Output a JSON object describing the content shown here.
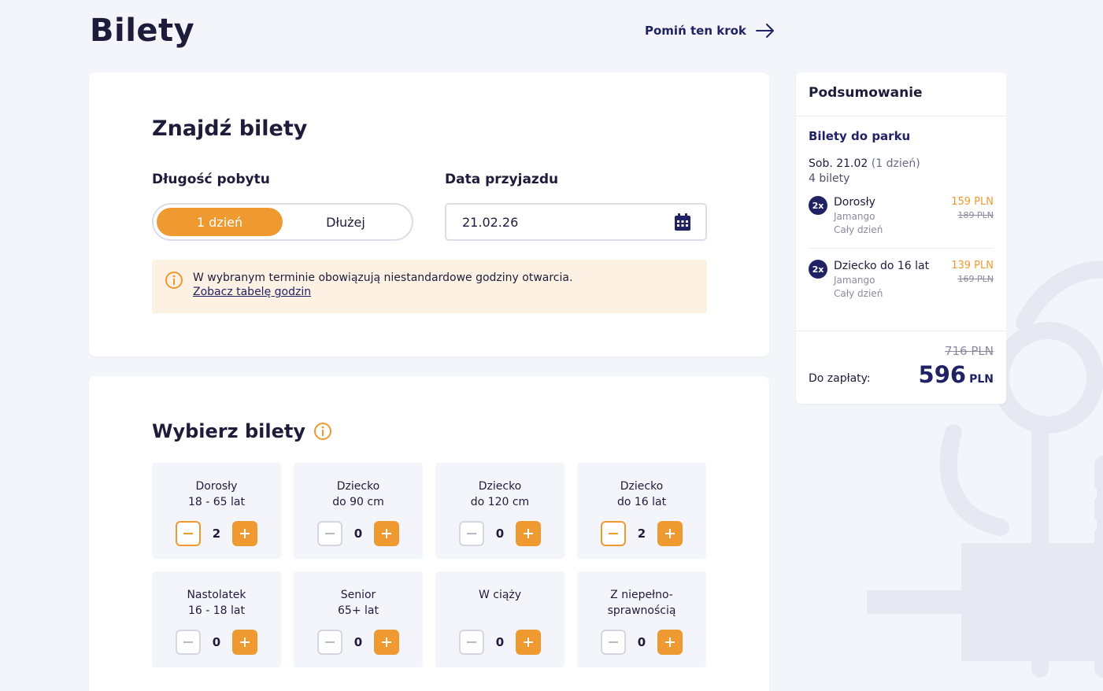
{
  "page": {
    "title": "Bilety",
    "skip_label": "Pomiń ten krok"
  },
  "find": {
    "title": "Znajdź bilety",
    "duration_label": "Długość pobytu",
    "duration_options": [
      "1 dzień",
      "Dłużej"
    ],
    "date_label": "Data przyjazdu",
    "date_value": "21.02.26",
    "notice_text": "W wybranym terminie obowiązują niestandardowe godziny otwarcia.",
    "notice_link": "Zobacz tabelę godzin"
  },
  "tickets": {
    "title": "Wybierz bilety",
    "items": [
      {
        "line1": "Dorosły",
        "line2": "18 - 65 lat",
        "count": "2"
      },
      {
        "line1": "Dziecko",
        "line2": "do 90 cm",
        "count": "0"
      },
      {
        "line1": "Dziecko",
        "line2": "do 120 cm",
        "count": "0"
      },
      {
        "line1": "Dziecko",
        "line2": "do 16 lat",
        "count": "2"
      },
      {
        "line1": "Nastolatek",
        "line2": "16 - 18 lat",
        "count": "0"
      },
      {
        "line1": "Senior",
        "line2": "65+ lat",
        "count": "0"
      },
      {
        "line1": "W ciąży",
        "line2": "",
        "count": "0"
      },
      {
        "line1": "Z niepełno-",
        "line2": "sprawnością",
        "count": "0"
      }
    ]
  },
  "summary": {
    "title": "Podsumowanie",
    "section": "Bilety do parku",
    "date": "Sob. 21.02",
    "days": "(1 dzień)",
    "count": "4 bilety",
    "items": [
      {
        "qty": "2x",
        "name": "Dorosły",
        "park": "Jamango",
        "duration": "Cały dzień",
        "price": "159 PLN",
        "old_price": "189 PLN"
      },
      {
        "qty": "2x",
        "name": "Dziecko do 16 lat",
        "park": "Jamango",
        "duration": "Cały dzień",
        "price": "139 PLN",
        "old_price": "169 PLN"
      }
    ],
    "total_old": "716 PLN",
    "total_label": "Do zapłaty:",
    "total_value": "596",
    "total_currency": "PLN"
  },
  "colors": {
    "accent": "#ee9a30",
    "navy": "#202264"
  }
}
